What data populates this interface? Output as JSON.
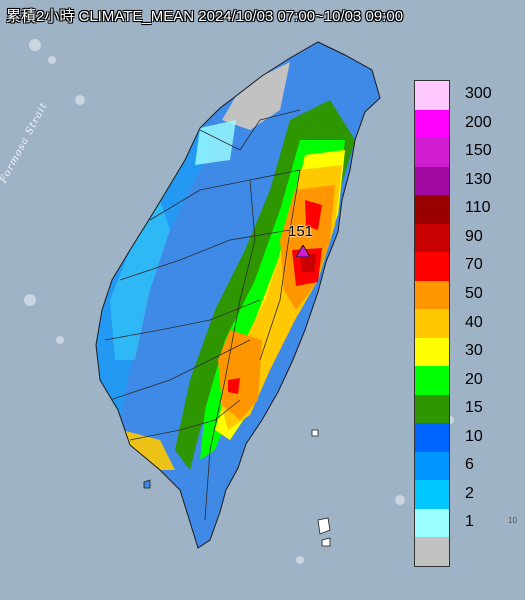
{
  "map": {
    "title": "累積2小時 CLIMATE_MEAN 2024/10/03 07:00~10/03 09:00",
    "strait_label": "Formosa Strait",
    "peak_value": "151",
    "corner_note": "10",
    "colors": {
      "sea": "#9fb3c7",
      "land_base": "#3f8ae6",
      "county_border": "#2b2b2b"
    }
  },
  "legend": {
    "items": [
      {
        "label": "300",
        "color": "#ffc8ff"
      },
      {
        "label": "200",
        "color": "#ff00ff"
      },
      {
        "label": "150",
        "color": "#d21ed2"
      },
      {
        "label": "130",
        "color": "#a00aa0"
      },
      {
        "label": "110",
        "color": "#9b0000"
      },
      {
        "label": "90",
        "color": "#c80000"
      },
      {
        "label": "70",
        "color": "#ff0000"
      },
      {
        "label": "50",
        "color": "#ff9600"
      },
      {
        "label": "40",
        "color": "#ffc800"
      },
      {
        "label": "30",
        "color": "#ffff00"
      },
      {
        "label": "20",
        "color": "#00ff00"
      },
      {
        "label": "15",
        "color": "#2d9600"
      },
      {
        "label": "10",
        "color": "#0064ff"
      },
      {
        "label": "6",
        "color": "#0096ff"
      },
      {
        "label": "2",
        "color": "#00c8ff"
      },
      {
        "label": "1",
        "color": "#9bffff"
      },
      {
        "label": "",
        "color": "#c2c2c2"
      }
    ]
  }
}
